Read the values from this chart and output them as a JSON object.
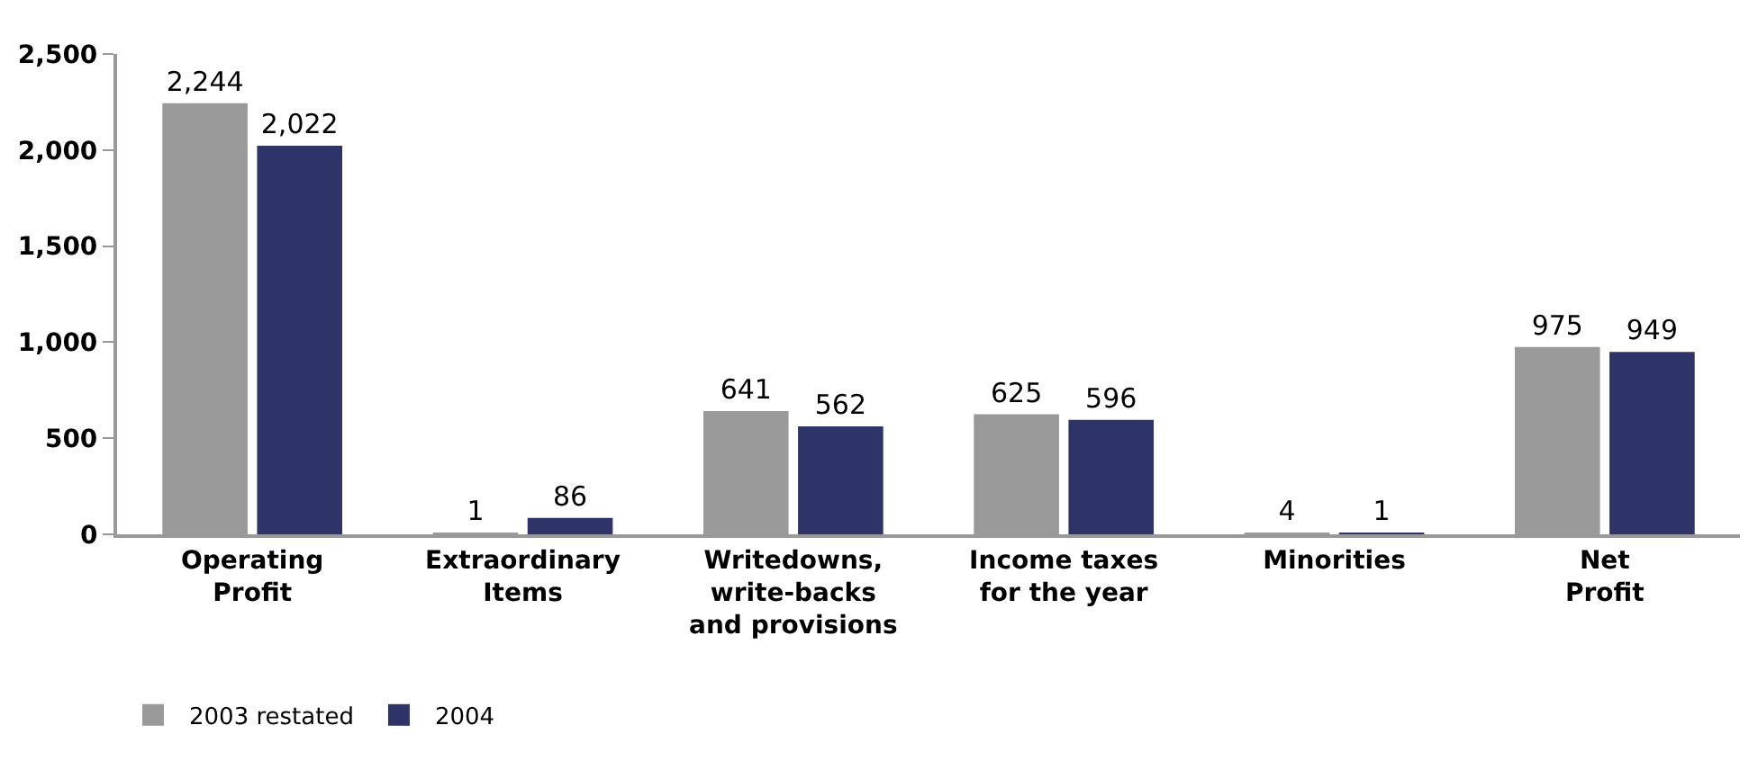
{
  "chart_data": {
    "type": "bar",
    "categories": [
      "Operating\nProfit",
      "Extraordinary\nItems",
      "Writedowns,\nwrite-backs\nand provisions",
      "Income taxes\nfor the year",
      "Minorities",
      "Net\nProfit"
    ],
    "series": [
      {
        "name": "2003 restated",
        "color": "#9a9a9a",
        "values": [
          2244,
          1,
          641,
          625,
          4,
          975
        ]
      },
      {
        "name": "2004",
        "color": "#2e3468",
        "values": [
          2022,
          86,
          562,
          596,
          1,
          949
        ]
      }
    ],
    "ylim": [
      0,
      2500
    ],
    "yticks": [
      {
        "value": 0,
        "label": "0"
      },
      {
        "value": 500,
        "label": "500"
      },
      {
        "value": 1000,
        "label": "1,000"
      },
      {
        "value": 1500,
        "label": "1,500"
      },
      {
        "value": 2000,
        "label": "2,000"
      },
      {
        "value": 2500,
        "label": "2,500"
      }
    ],
    "value_labels": [
      [
        "2,244",
        "1",
        "641",
        "625",
        "4",
        "975"
      ],
      [
        "2,022",
        "86",
        "562",
        "596",
        "1",
        "949"
      ]
    ],
    "grid": false,
    "legend": "bottom left"
  }
}
